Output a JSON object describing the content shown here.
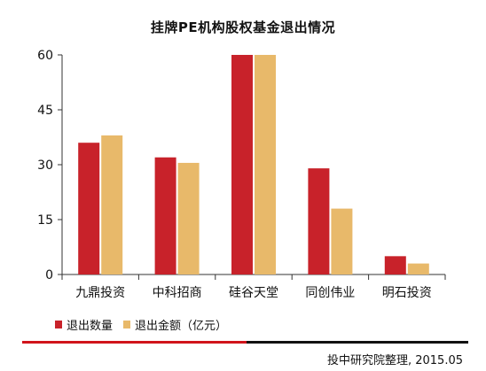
{
  "chart_data": {
    "type": "bar",
    "title": "挂牌PE机构股权基金退出情况",
    "categories": [
      "九鼎投资",
      "中科招商",
      "硅谷天堂",
      "同创伟业",
      "明石投资"
    ],
    "series": [
      {
        "name": "退出数量",
        "values": [
          36,
          32,
          60,
          29,
          5
        ],
        "color": "#c8222a"
      },
      {
        "name": "退出金额（亿元）",
        "values": [
          38,
          30.5,
          60,
          18,
          3
        ],
        "color": "#e8b96a"
      }
    ],
    "yticks": [
      "0",
      "15",
      "30",
      "45",
      "60"
    ],
    "ylim": [
      0,
      60
    ],
    "grid": false,
    "legend_position": "bottom-left"
  },
  "source_text": "投中研究院整理, 2015.05",
  "watermark_text": "",
  "colors": {
    "rule_red": "#d1141b",
    "rule_black": "#111111",
    "axis": "#333333"
  }
}
